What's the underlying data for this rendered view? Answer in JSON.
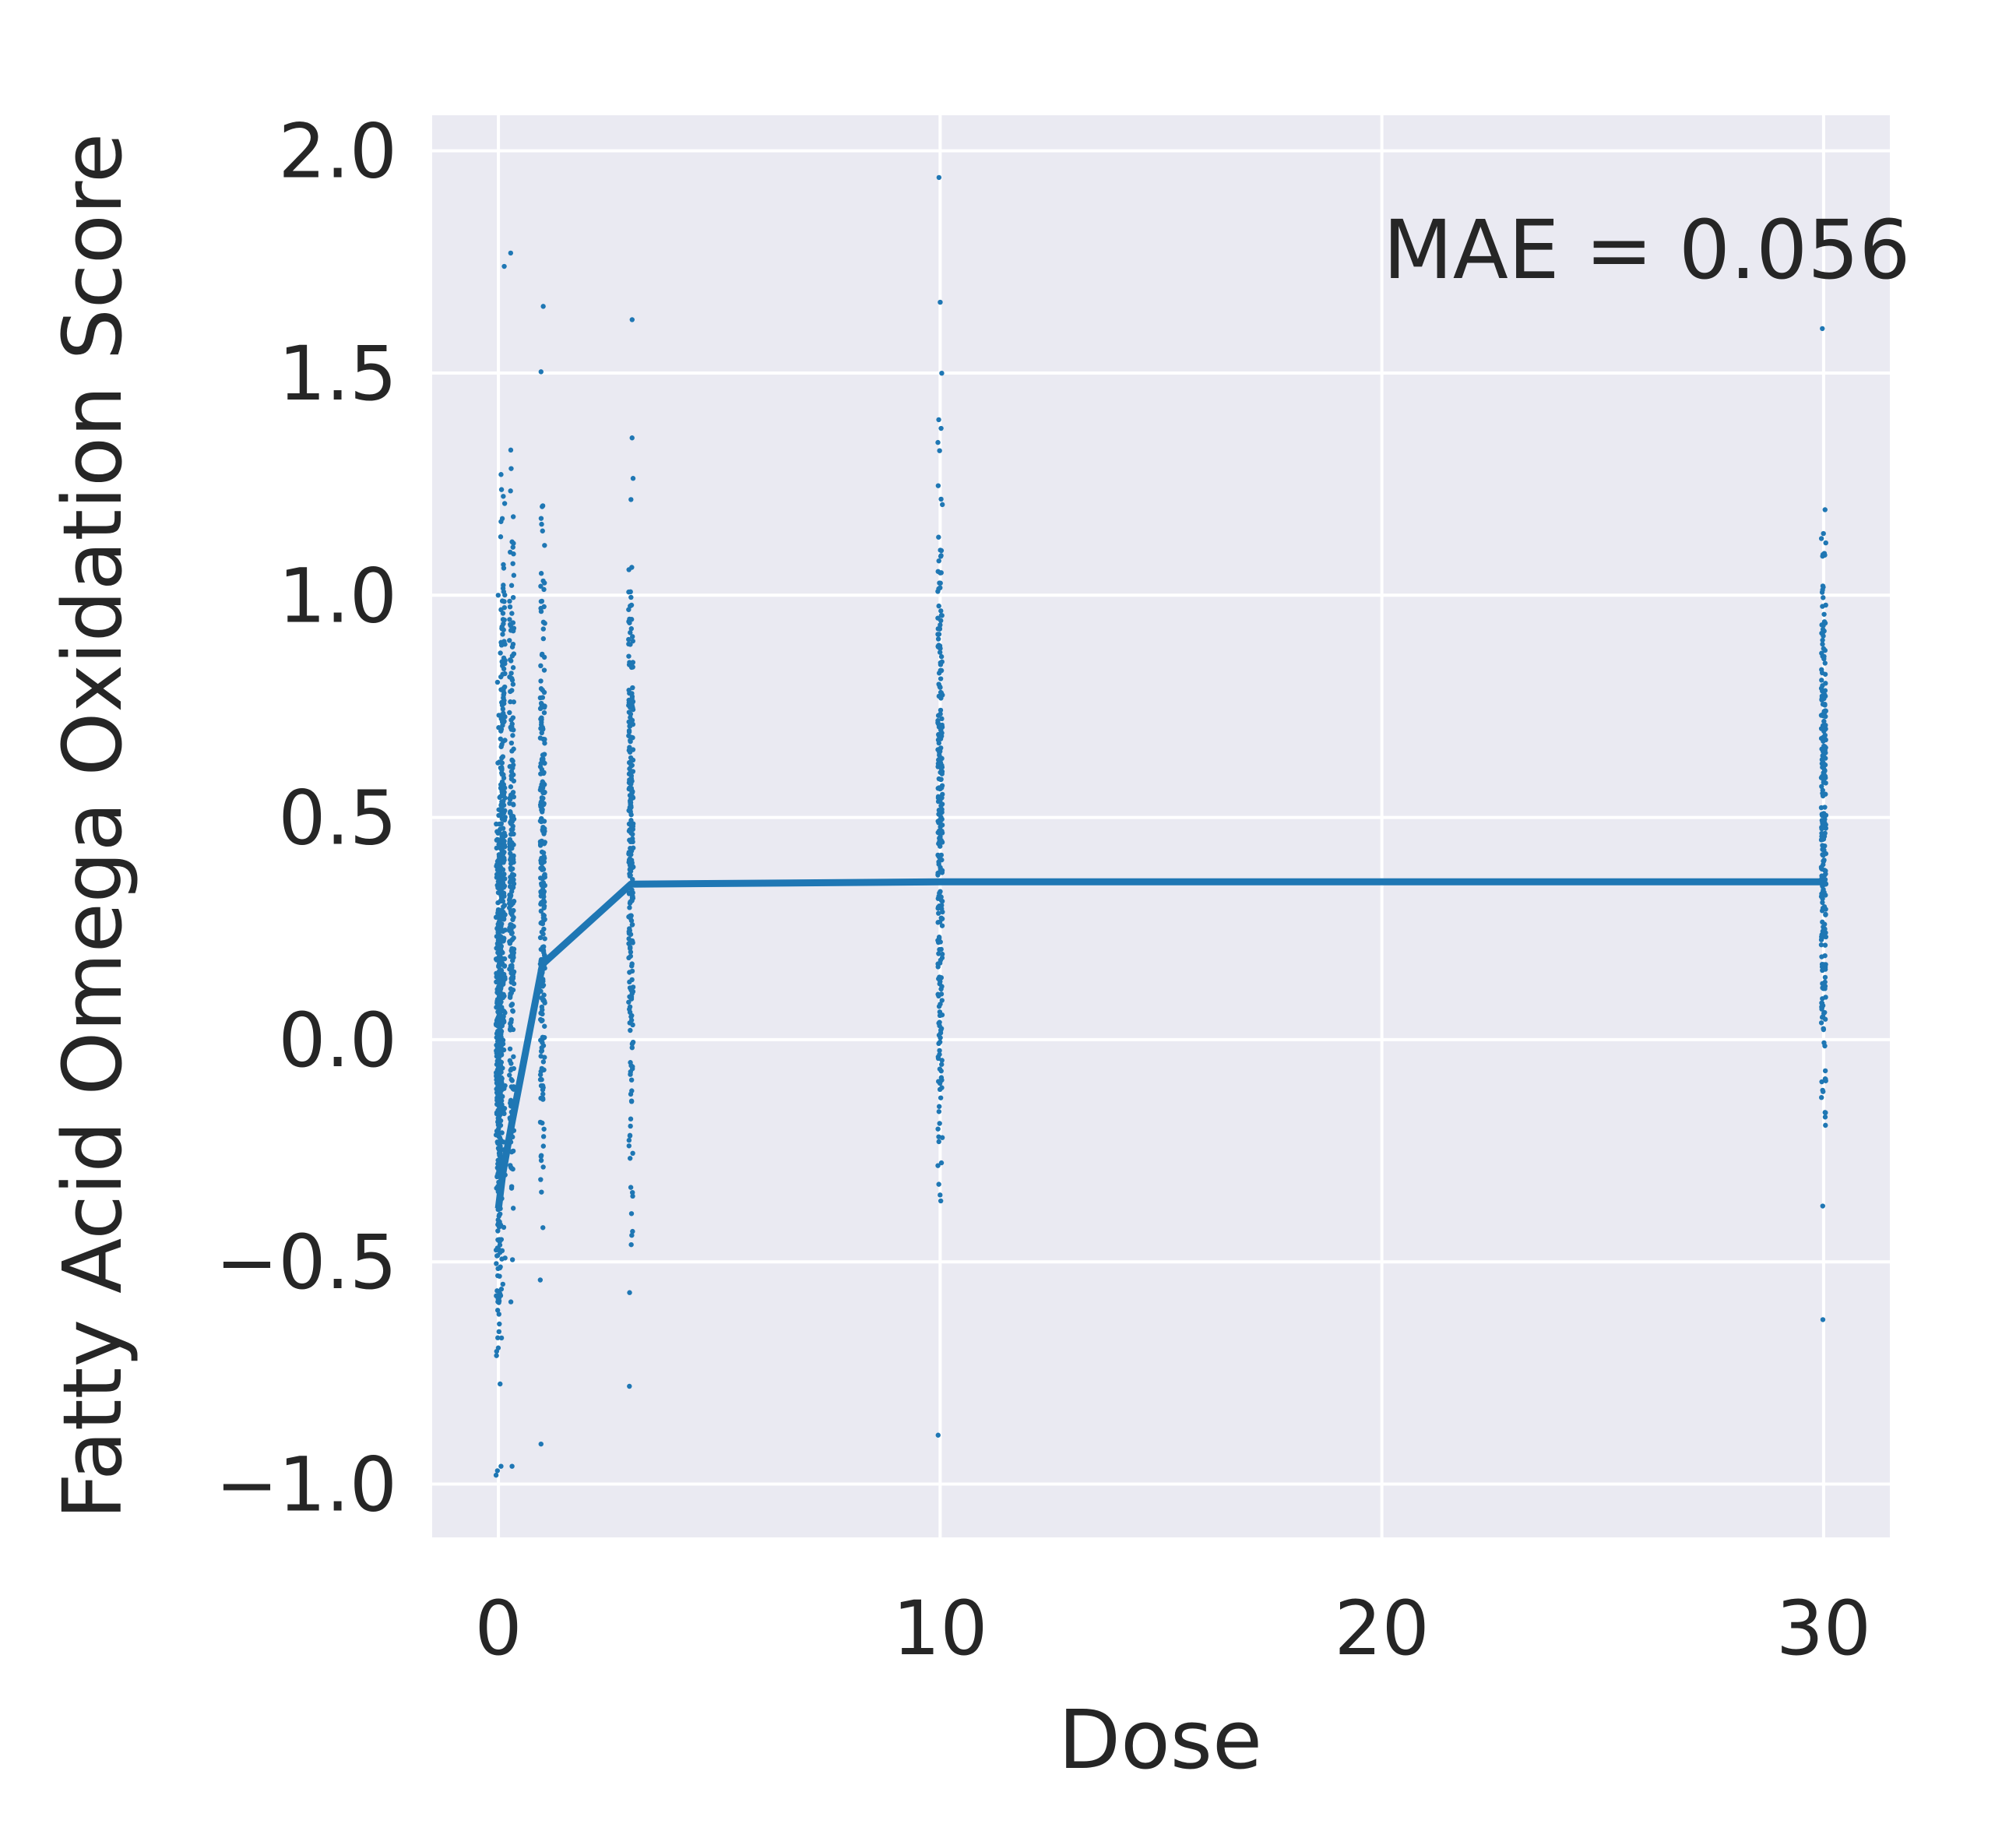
{
  "chart_data": {
    "type": "scatter",
    "xlabel": "Dose",
    "ylabel": "Fatty Acid Omega Oxidation Score",
    "xlim": [
      -1.5,
      31.5
    ],
    "ylim": [
      -1.12,
      2.08
    ],
    "x_ticks": [
      0,
      10,
      20,
      30
    ],
    "y_ticks": [
      -1.0,
      -0.5,
      0.0,
      0.5,
      1.0,
      1.5,
      2.0
    ],
    "y_tick_labels": [
      "−1.0",
      "−0.5",
      "0.0",
      "0.5",
      "1.0",
      "1.5",
      "2.0"
    ],
    "grid": true,
    "background_color": "#eaeaf2",
    "grid_color": "#ffffff",
    "series_color": "#1f77b4",
    "annotation": "MAE = 0.056",
    "scatter_columns": [
      {
        "dose": 0.0,
        "min": -0.98,
        "max": 0.87
      },
      {
        "dose": 0.03,
        "min": -0.97,
        "max": 1.0
      },
      {
        "dose": 0.1,
        "min": -0.96,
        "max": 1.74
      },
      {
        "dose": 0.3,
        "min": -0.96,
        "max": 1.77
      },
      {
        "dose": 1.0,
        "min": -0.91,
        "max": 1.65
      },
      {
        "dose": 3.0,
        "min": -0.78,
        "max": 1.62
      },
      {
        "dose": 10.0,
        "min": -0.89,
        "max": 1.94
      },
      {
        "dose": 30.0,
        "min": -0.63,
        "max": 1.6
      }
    ],
    "fit_line": {
      "x": [
        0.0,
        0.1,
        0.3,
        1.0,
        3.0,
        10.0,
        30.0
      ],
      "y": [
        -0.38,
        -0.3,
        -0.19,
        0.17,
        0.35,
        0.355,
        0.355
      ]
    }
  }
}
